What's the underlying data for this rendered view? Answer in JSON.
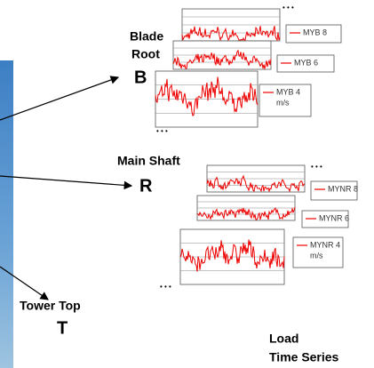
{
  "labels": {
    "blade_root": [
      "Blade",
      "Root"
    ],
    "blade_root_letter": "B",
    "main_shaft": "Main Shaft",
    "main_shaft_letter": "R",
    "tower_top": "Tower Top",
    "tower_top_letter": "T",
    "load_time_series": [
      "Load",
      "Time Series"
    ]
  },
  "ellipsis": "• • •",
  "blade_plots": [
    {
      "legend": "MYB 8"
    },
    {
      "legend": "MYB 6"
    },
    {
      "legend": "MYB 4",
      "unit": "m/s"
    }
  ],
  "shaft_plots": [
    {
      "legend": "MYNR 8"
    },
    {
      "legend": "MYNR 6"
    },
    {
      "legend": "MYNR 4",
      "unit": "m/s"
    }
  ]
}
